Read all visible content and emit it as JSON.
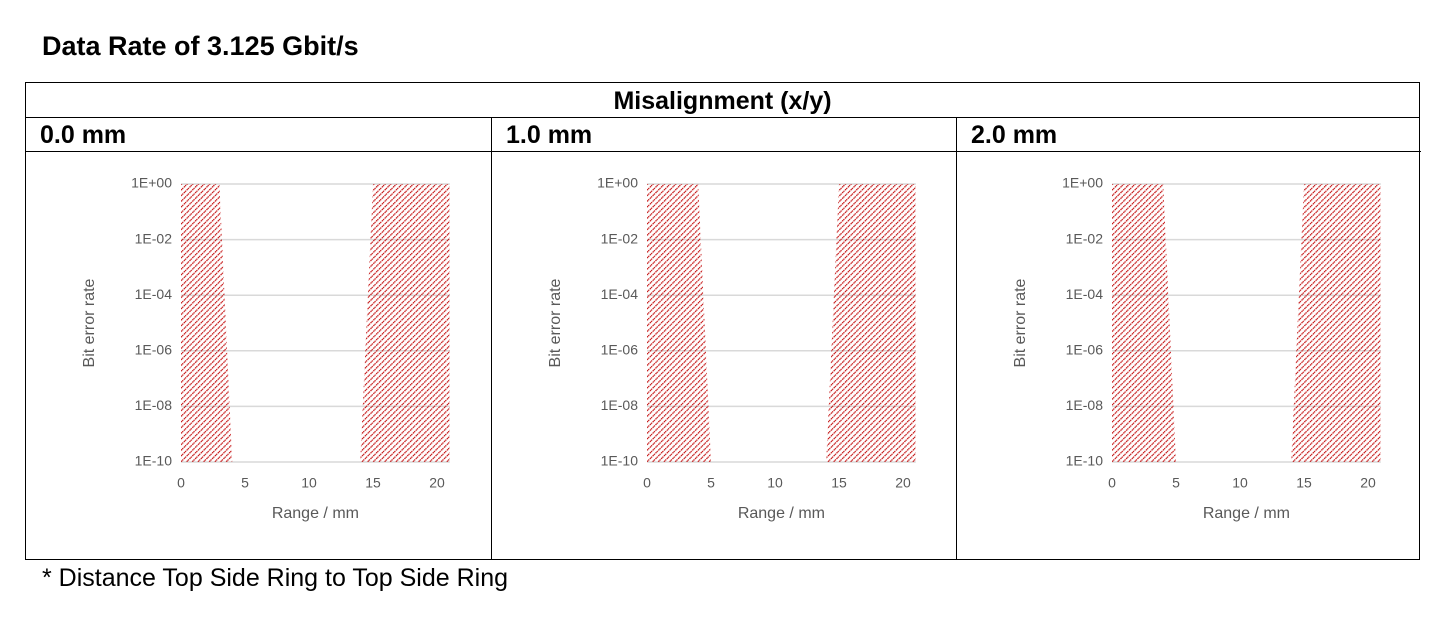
{
  "title": "Data Rate of 3.125 Gbit/s",
  "table": {
    "header": "Misalignment (x/y)",
    "columns": [
      "0.0 mm",
      "1.0 mm",
      "2.0 mm"
    ]
  },
  "chart_data": [
    {
      "type": "area",
      "x_label": "Range / mm",
      "y_label": "Bit error rate",
      "color": "#c00000",
      "hatched": true,
      "log_y": true,
      "grid": true,
      "x": [
        0,
        3,
        4,
        14,
        15,
        21
      ],
      "values": [
        1,
        1,
        1e-10,
        1e-10,
        1,
        1
      ],
      "xlim": [
        0,
        21
      ],
      "xticks": [
        0,
        5,
        10,
        15,
        20
      ],
      "ylim": [
        1e-10,
        1
      ],
      "yticks": [
        {
          "value": 1e-10,
          "label": "1E-10"
        },
        {
          "value": 1e-08,
          "label": "1E-08"
        },
        {
          "value": 1e-06,
          "label": "1E-06"
        },
        {
          "value": 0.0001,
          "label": "1E-04"
        },
        {
          "value": 0.01,
          "label": "1E-02"
        },
        {
          "value": 1,
          "label": "1E+00"
        }
      ]
    },
    {
      "type": "area",
      "x_label": "Range / mm",
      "y_label": "Bit error rate",
      "color": "#c00000",
      "hatched": true,
      "log_y": true,
      "grid": true,
      "x": [
        0,
        4,
        5,
        14,
        15,
        21
      ],
      "values": [
        1,
        1,
        1e-10,
        1e-10,
        1,
        1
      ],
      "xlim": [
        0,
        21
      ],
      "xticks": [
        0,
        5,
        10,
        15,
        20
      ],
      "ylim": [
        1e-10,
        1
      ],
      "yticks": [
        {
          "value": 1e-10,
          "label": "1E-10"
        },
        {
          "value": 1e-08,
          "label": "1E-08"
        },
        {
          "value": 1e-06,
          "label": "1E-06"
        },
        {
          "value": 0.0001,
          "label": "1E-04"
        },
        {
          "value": 0.01,
          "label": "1E-02"
        },
        {
          "value": 1,
          "label": "1E+00"
        }
      ]
    },
    {
      "type": "area",
      "x_label": "Range / mm",
      "y_label": "Bit error rate",
      "color": "#c00000",
      "hatched": true,
      "log_y": true,
      "grid": true,
      "x": [
        0,
        4,
        5,
        14,
        15,
        21
      ],
      "values": [
        1,
        1,
        1e-10,
        1e-10,
        1,
        1
      ],
      "xlim": [
        0,
        21
      ],
      "xticks": [
        0,
        5,
        10,
        15,
        20
      ],
      "ylim": [
        1e-10,
        1
      ],
      "yticks": [
        {
          "value": 1e-10,
          "label": "1E-10"
        },
        {
          "value": 1e-08,
          "label": "1E-08"
        },
        {
          "value": 1e-06,
          "label": "1E-06"
        },
        {
          "value": 0.0001,
          "label": "1E-04"
        },
        {
          "value": 0.01,
          "label": "1E-02"
        },
        {
          "value": 1,
          "label": "1E+00"
        }
      ]
    }
  ],
  "footnote": "* Distance Top Side Ring to Top Side Ring"
}
